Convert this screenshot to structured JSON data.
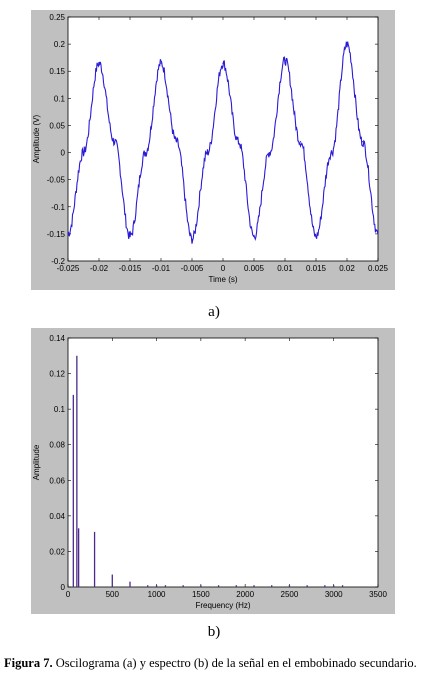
{
  "chart_data": [
    {
      "type": "line",
      "title": "",
      "xlabel": "Time (s)",
      "ylabel": "Amplitude (V)",
      "xlim": [
        -0.025,
        0.025
      ],
      "ylim": [
        -0.2,
        0.25
      ],
      "xticks": [
        "-0.025",
        "-0.02",
        "-0.015",
        "-0.01",
        "-0.005",
        "0",
        "0.005",
        "0.01",
        "0.015",
        "0.02",
        "0.025"
      ],
      "yticks": [
        "-0.2",
        "-0.15",
        "-0.1",
        "-0.05",
        "0",
        "0.05",
        "0.1",
        "0.15",
        "0.2",
        "0.25"
      ],
      "line_color": "#2a1bd6",
      "series": [
        {
          "x": [
            -0.025,
            -0.0225,
            -0.02,
            -0.0175,
            -0.015,
            -0.0125,
            -0.01,
            -0.0075,
            -0.005,
            -0.0025,
            0.0,
            0.0025,
            0.005,
            0.0075,
            0.01,
            0.0125,
            0.015,
            0.0175,
            0.02,
            0.0225,
            0.025
          ],
          "values": [
            -0.15,
            0.0,
            0.165,
            0.02,
            -0.155,
            0.0,
            0.165,
            0.02,
            -0.16,
            0.0,
            0.165,
            0.02,
            -0.155,
            0.0,
            0.17,
            0.02,
            -0.155,
            0.0,
            0.2,
            0.02,
            -0.15
          ]
        }
      ]
    },
    {
      "type": "bar",
      "title": "",
      "xlabel": "Frequency (Hz)",
      "ylabel": "Amplitude",
      "xlim": [
        0,
        3500
      ],
      "ylim": [
        0,
        0.14
      ],
      "xticks": [
        "0",
        "500",
        "1000",
        "1500",
        "2000",
        "2500",
        "3000",
        "3500"
      ],
      "yticks": [
        "0",
        "0.02",
        "0.04",
        "0.06",
        "0.08",
        "0.1",
        "0.12",
        "0.14"
      ],
      "line_color": "#4b2a8c",
      "series": [
        {
          "x": [
            60,
            100,
            120,
            300,
            500,
            700,
            900,
            1000,
            1100,
            1300,
            1500,
            1700,
            1900,
            2100,
            2300,
            2500,
            2700,
            2900,
            3000,
            3100
          ],
          "values": [
            0.108,
            0.13,
            0.033,
            0.031,
            0.007,
            0.003,
            0.001,
            0.001,
            0.001,
            0.001,
            0.001,
            0.001,
            0.001,
            0.001,
            0.001,
            0.001,
            0.001,
            0.001,
            0.001,
            0.001
          ]
        }
      ]
    }
  ],
  "labels": {
    "a": "a)",
    "b": "b)"
  },
  "caption": {
    "figure_label": "Figura 7.",
    "text": " Oscilograma (a)  y espectro (b) de la señal en el embobinado secundario."
  }
}
